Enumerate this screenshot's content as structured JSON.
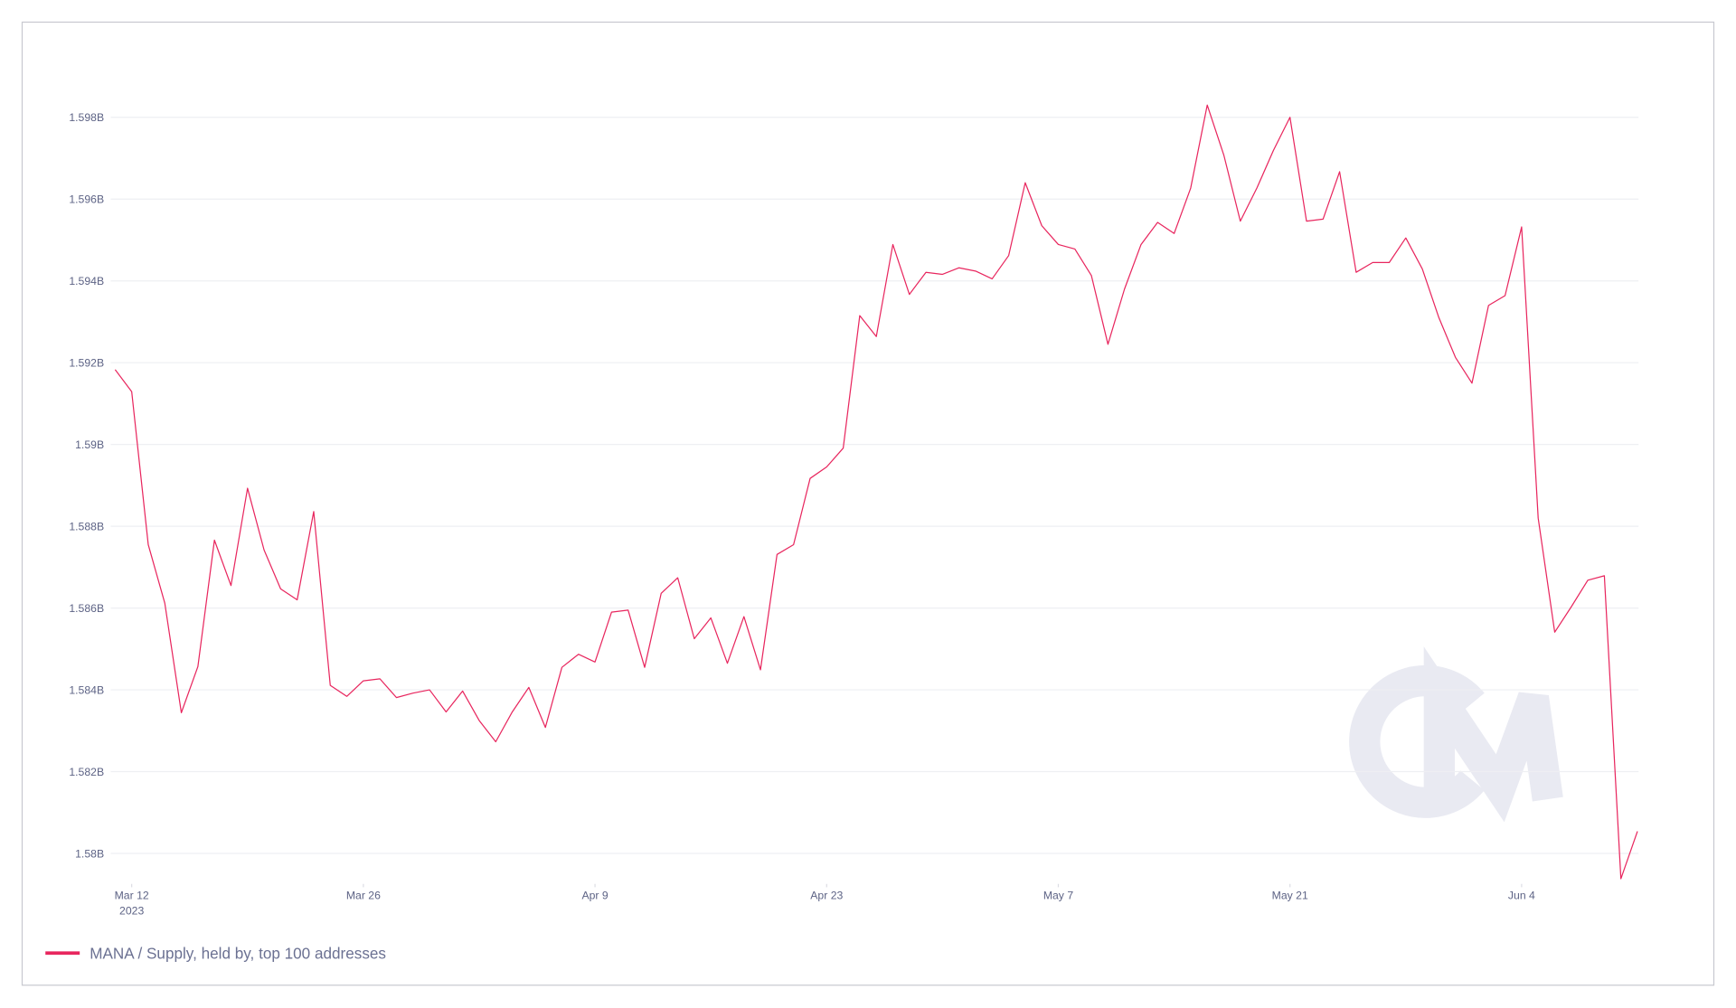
{
  "chart_data": {
    "type": "line",
    "x": [
      "2023-03-11",
      "2023-03-12",
      "2023-03-13",
      "2023-03-14",
      "2023-03-15",
      "2023-03-16",
      "2023-03-17",
      "2023-03-18",
      "2023-03-19",
      "2023-03-20",
      "2023-03-21",
      "2023-03-22",
      "2023-03-23",
      "2023-03-24",
      "2023-03-25",
      "2023-03-26",
      "2023-03-27",
      "2023-03-28",
      "2023-03-29",
      "2023-03-30",
      "2023-03-31",
      "2023-04-01",
      "2023-04-02",
      "2023-04-03",
      "2023-04-04",
      "2023-04-05",
      "2023-04-06",
      "2023-04-07",
      "2023-04-08",
      "2023-04-09",
      "2023-04-10",
      "2023-04-11",
      "2023-04-12",
      "2023-04-13",
      "2023-04-14",
      "2023-04-15",
      "2023-04-16",
      "2023-04-17",
      "2023-04-18",
      "2023-04-19",
      "2023-04-20",
      "2023-04-21",
      "2023-04-22",
      "2023-04-23",
      "2023-04-24",
      "2023-04-25",
      "2023-04-26",
      "2023-04-27",
      "2023-04-28",
      "2023-04-29",
      "2023-04-30",
      "2023-05-01",
      "2023-05-02",
      "2023-05-03",
      "2023-05-04",
      "2023-05-05",
      "2023-05-06",
      "2023-05-07",
      "2023-05-08",
      "2023-05-09",
      "2023-05-10",
      "2023-05-11",
      "2023-05-12",
      "2023-05-13",
      "2023-05-14",
      "2023-05-15",
      "2023-05-16",
      "2023-05-17",
      "2023-05-18",
      "2023-05-19",
      "2023-05-20",
      "2023-05-21",
      "2023-05-22",
      "2023-05-23",
      "2023-05-24",
      "2023-05-25",
      "2023-05-26",
      "2023-05-27",
      "2023-05-28",
      "2023-05-29",
      "2023-05-30",
      "2023-05-31",
      "2023-06-01",
      "2023-06-02",
      "2023-06-03",
      "2023-06-04",
      "2023-06-05",
      "2023-06-06",
      "2023-06-07",
      "2023-06-08",
      "2023-06-09",
      "2023-06-10",
      "2023-06-11"
    ],
    "series": [
      {
        "name": "MANA / Supply, held by, top 100 addresses",
        "color": "#e8265e",
        "values": [
          1.59183,
          1.59129,
          1.58755,
          1.58612,
          1.58344,
          1.58457,
          1.58766,
          1.58655,
          1.58893,
          1.58742,
          1.58647,
          1.5862,
          1.58836,
          1.58411,
          1.58384,
          1.58422,
          1.58427,
          1.58381,
          1.58392,
          1.584,
          1.58346,
          1.58397,
          1.58325,
          1.58273,
          1.58346,
          1.58406,
          1.58308,
          1.58455,
          1.58487,
          1.58468,
          1.5859,
          1.58595,
          1.58455,
          1.58636,
          1.58674,
          1.58525,
          1.58576,
          1.58465,
          1.58579,
          1.58449,
          1.58731,
          1.58755,
          1.58917,
          1.58945,
          1.58991,
          1.59315,
          1.59264,
          1.59489,
          1.59367,
          1.59421,
          1.59416,
          1.59432,
          1.59424,
          1.59405,
          1.59462,
          1.5964,
          1.59535,
          1.59489,
          1.59478,
          1.59413,
          1.59245,
          1.5938,
          1.59489,
          1.59543,
          1.59516,
          1.59627,
          1.5983,
          1.59708,
          1.59546,
          1.59627,
          1.59719,
          1.598,
          1.59546,
          1.59551,
          1.59667,
          1.59421,
          1.59445,
          1.59445,
          1.59505,
          1.59429,
          1.5931,
          1.59213,
          1.5915,
          1.5934,
          1.59364,
          1.59532,
          1.5882,
          1.58541,
          1.58603,
          1.58668,
          1.58679,
          1.57938,
          1.58054
        ]
      }
    ],
    "xlim": [
      "2023-03-11",
      "2023-06-11"
    ],
    "xticks": [
      {
        "value": "2023-03-12",
        "label": "Mar 12",
        "sublabel": "2023"
      },
      {
        "value": "2023-03-26",
        "label": "Mar 26"
      },
      {
        "value": "2023-04-09",
        "label": "Apr 9"
      },
      {
        "value": "2023-04-23",
        "label": "Apr 23"
      },
      {
        "value": "2023-05-07",
        "label": "May 7"
      },
      {
        "value": "2023-05-21",
        "label": "May 21"
      },
      {
        "value": "2023-06-04",
        "label": "Jun 4"
      }
    ],
    "ylim": [
      1.5792,
      1.6001
    ],
    "yticks": [
      {
        "value": 1.58,
        "label": "1.58B"
      },
      {
        "value": 1.582,
        "label": "1.582B"
      },
      {
        "value": 1.584,
        "label": "1.584B"
      },
      {
        "value": 1.586,
        "label": "1.586B"
      },
      {
        "value": 1.588,
        "label": "1.588B"
      },
      {
        "value": 1.59,
        "label": "1.59B"
      },
      {
        "value": 1.592,
        "label": "1.592B"
      },
      {
        "value": 1.594,
        "label": "1.594B"
      },
      {
        "value": 1.596,
        "label": "1.596B"
      },
      {
        "value": 1.598,
        "label": "1.598B"
      }
    ],
    "grid": true,
    "legend": "bottom-left"
  }
}
